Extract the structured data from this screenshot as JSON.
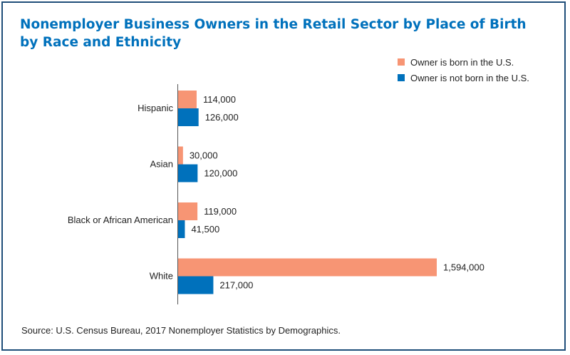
{
  "title_line1": "Nonemployer Business Owners in the Retail Sector by Place of Birth",
  "title_line2": "by Race and Ethnicity",
  "source": "Source: U.S. Census Bureau, 2017 Nonemployer Statistics by Demographics.",
  "legend": [
    {
      "label": "Owner is born in the U.S.",
      "color": "#f79574"
    },
    {
      "label": "Owner is not born in the U.S.",
      "color": "#0071bc"
    }
  ],
  "chart_data": {
    "type": "bar",
    "orientation": "horizontal",
    "title": "Nonemployer Business Owners in the Retail Sector by Place of Birth by Race and Ethnicity",
    "categories": [
      "Hispanic",
      "Asian",
      "Black or African American",
      "White"
    ],
    "series": [
      {
        "name": "Owner is born in the U.S.",
        "color": "#f79574",
        "values": [
          114000,
          30000,
          119000,
          1594000
        ],
        "labels": [
          "114,000",
          "30,000",
          "119,000",
          "1,594,000"
        ]
      },
      {
        "name": "Owner is not born in the U.S.",
        "color": "#0071bc",
        "values": [
          126000,
          120000,
          41500,
          217000
        ],
        "labels": [
          "126,000",
          "120,000",
          "41,500",
          "217,000"
        ]
      }
    ],
    "xlim": [
      0,
      1594000
    ],
    "grid": false,
    "legend_position": "top-right"
  }
}
